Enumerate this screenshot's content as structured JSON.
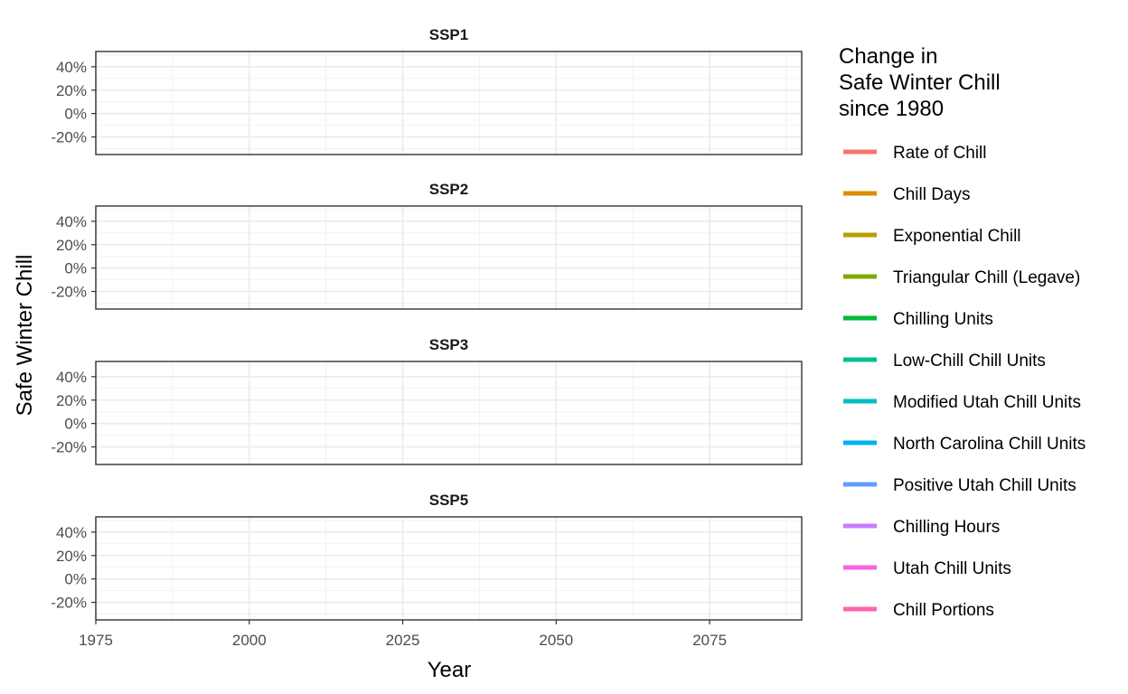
{
  "chart_data": {
    "type": "line",
    "ylabel": "Safe Winter Chill",
    "xlabel": "Year",
    "xlim": [
      1975,
      2090
    ],
    "ylim": [
      -35,
      53
    ],
    "x_ticks": [
      1975,
      2000,
      2025,
      2050,
      2075
    ],
    "x_minor_ticks": [
      1987.5,
      2012.5,
      2037.5,
      2062.5,
      2087.5
    ],
    "y_ticks": [
      -20,
      0,
      20,
      40
    ],
    "y_tick_labels": [
      "-20%",
      "0%",
      "20%",
      "40%"
    ],
    "y_minor_ticks": [
      -30,
      -10,
      10,
      30,
      50
    ],
    "grid": true,
    "facets": [
      {
        "title": "SSP1",
        "series": []
      },
      {
        "title": "SSP2",
        "series": []
      },
      {
        "title": "SSP3",
        "series": []
      },
      {
        "title": "SSP5",
        "series": []
      }
    ],
    "legend": {
      "title": [
        "Change in",
        "Safe Winter Chill",
        "since 1980"
      ],
      "position": "right",
      "entries": [
        {
          "name": "Rate of Chill",
          "color": "#F8766D"
        },
        {
          "name": "Chill Days",
          "color": "#DE8C00"
        },
        {
          "name": "Exponential Chill",
          "color": "#B79F00"
        },
        {
          "name": "Triangular Chill (Legave)",
          "color": "#7CAE00"
        },
        {
          "name": "Chilling Units",
          "color": "#00BA38"
        },
        {
          "name": "Low-Chill Chill Units",
          "color": "#00C08B"
        },
        {
          "name": "Modified Utah Chill Units",
          "color": "#00BFC4"
        },
        {
          "name": "North Carolina Chill Units",
          "color": "#00B4F0"
        },
        {
          "name": "Positive Utah Chill Units",
          "color": "#619CFF"
        },
        {
          "name": "Chilling Hours",
          "color": "#C77CFF"
        },
        {
          "name": "Utah Chill Units",
          "color": "#F564E3"
        },
        {
          "name": "Chill Portions",
          "color": "#FF64B0"
        }
      ]
    }
  }
}
